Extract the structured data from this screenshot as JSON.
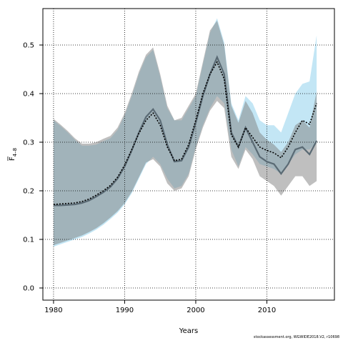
{
  "chart_data": {
    "type": "line",
    "xlabel": "Years",
    "ylabel": "F",
    "ylabel_subscript": "4–8",
    "xlim": [
      1978.5,
      2019.5
    ],
    "ylim": [
      -0.025,
      0.575
    ],
    "xticks": [
      1980,
      1990,
      2000,
      2010
    ],
    "yticks": [
      0.0,
      0.1,
      0.2,
      0.3,
      0.4,
      0.5
    ],
    "ytick_labels": [
      "0.0",
      "0.1",
      "0.2",
      "0.3",
      "0.4",
      "0.5"
    ],
    "grid": true,
    "colors": {
      "band_blue": "#87ceeb",
      "band_gray": "#808080",
      "line_gray": "#5a6a74",
      "line_black": "#000000"
    },
    "x": [
      1980,
      1981,
      1982,
      1983,
      1984,
      1985,
      1986,
      1987,
      1988,
      1989,
      1990,
      1991,
      1992,
      1993,
      1994,
      1995,
      1996,
      1997,
      1998,
      1999,
      2000,
      2001,
      2002,
      2003,
      2004,
      2005,
      2006,
      2007,
      2008,
      2009,
      2010,
      2011,
      2012,
      2013,
      2014,
      2015,
      2016,
      2017
    ],
    "series": [
      {
        "style": "band",
        "color": "#87ceeb",
        "upper": [
          0.345,
          0.333,
          0.32,
          0.305,
          0.293,
          0.293,
          0.295,
          0.302,
          0.308,
          0.325,
          0.355,
          0.395,
          0.44,
          0.475,
          0.49,
          0.435,
          0.37,
          0.345,
          0.345,
          0.37,
          0.395,
          0.46,
          0.525,
          0.555,
          0.505,
          0.38,
          0.345,
          0.395,
          0.38,
          0.345,
          0.335,
          0.335,
          0.32,
          0.36,
          0.4,
          0.42,
          0.425,
          0.52
        ],
        "lower": [
          0.085,
          0.09,
          0.095,
          0.1,
          0.105,
          0.112,
          0.12,
          0.13,
          0.142,
          0.155,
          0.172,
          0.195,
          0.225,
          0.255,
          0.27,
          0.255,
          0.225,
          0.205,
          0.21,
          0.235,
          0.29,
          0.335,
          0.37,
          0.395,
          0.38,
          0.285,
          0.25,
          0.29,
          0.275,
          0.255,
          0.25,
          0.245,
          0.235,
          0.255,
          0.275,
          0.285,
          0.285,
          0.3
        ]
      },
      {
        "style": "band",
        "color": "#808080",
        "upper": [
          0.348,
          0.336,
          0.323,
          0.308,
          0.297,
          0.297,
          0.3,
          0.307,
          0.313,
          0.33,
          0.36,
          0.4,
          0.445,
          0.48,
          0.495,
          0.44,
          0.375,
          0.345,
          0.35,
          0.375,
          0.4,
          0.465,
          0.53,
          0.55,
          0.5,
          0.375,
          0.34,
          0.385,
          0.36,
          0.32,
          0.305,
          0.295,
          0.28,
          0.3,
          0.335,
          0.345,
          0.33,
          0.405
        ],
        "lower": [
          0.088,
          0.093,
          0.098,
          0.103,
          0.108,
          0.115,
          0.123,
          0.133,
          0.145,
          0.158,
          0.175,
          0.198,
          0.228,
          0.258,
          0.265,
          0.25,
          0.215,
          0.2,
          0.205,
          0.23,
          0.285,
          0.33,
          0.365,
          0.385,
          0.37,
          0.27,
          0.245,
          0.285,
          0.265,
          0.23,
          0.22,
          0.21,
          0.19,
          0.21,
          0.23,
          0.23,
          0.21,
          0.22
        ]
      },
      {
        "style": "line",
        "color": "#5a6a74",
        "values": [
          0.17,
          0.17,
          0.171,
          0.172,
          0.175,
          0.18,
          0.188,
          0.197,
          0.208,
          0.225,
          0.25,
          0.283,
          0.32,
          0.352,
          0.368,
          0.345,
          0.295,
          0.26,
          0.262,
          0.29,
          0.34,
          0.395,
          0.44,
          0.475,
          0.44,
          0.32,
          0.29,
          0.33,
          0.3,
          0.27,
          0.26,
          0.255,
          0.235,
          0.255,
          0.285,
          0.29,
          0.275,
          0.303
        ]
      },
      {
        "style": "line-dotted",
        "color": "#000000",
        "values": [
          0.172,
          0.173,
          0.174,
          0.175,
          0.178,
          0.183,
          0.191,
          0.2,
          0.211,
          0.228,
          0.253,
          0.285,
          0.318,
          0.345,
          0.36,
          0.335,
          0.29,
          0.262,
          0.265,
          0.295,
          0.345,
          0.4,
          0.44,
          0.465,
          0.43,
          0.315,
          0.29,
          0.33,
          0.31,
          0.29,
          0.283,
          0.278,
          0.268,
          0.29,
          0.32,
          0.345,
          0.337,
          0.38
        ]
      }
    ]
  },
  "footer": {
    "note": "stockassessment.org, WGWIDE2018.V2, r10698"
  }
}
